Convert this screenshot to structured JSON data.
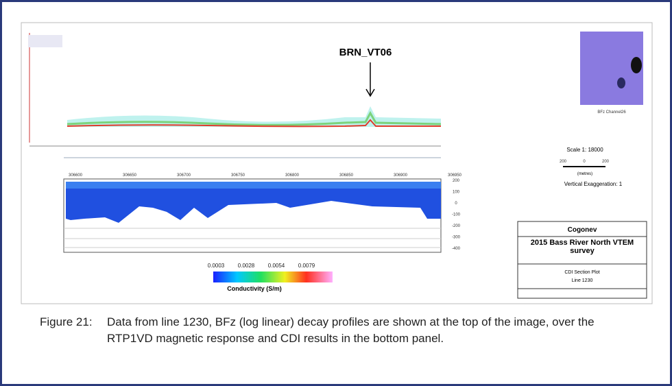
{
  "figure": {
    "callout": "BRN_VT06",
    "thumbnail_label": "BFz Channel26",
    "scale": {
      "title": "Scale 1: 18000",
      "bar_labels": [
        "200",
        "0",
        "200"
      ],
      "unit": "(metres)",
      "exaggeration": "Vertical Exaggeration: 1"
    },
    "easting_labels": [
      "306600",
      "306650",
      "306700",
      "306750",
      "306800",
      "306850",
      "306900",
      "306950"
    ],
    "depth_labels": [
      "200",
      "100",
      "0",
      "-100",
      "-200",
      "-300",
      "-400"
    ],
    "colorbar": {
      "ticks": [
        "0.0003",
        "0.0028",
        "0.0054",
        "0.0079"
      ],
      "label": "Conductivity (S/m)"
    },
    "title_block": {
      "company": "Cogonev",
      "survey": "2015 Bass River North VTEM survey",
      "plot": "CDI Section Plot",
      "line": "Line 1230"
    }
  },
  "caption": {
    "number": "Figure 21:",
    "text": "Data from line 1230, BFz (log linear) decay profiles are shown at the top of the image, over the RTP1VD magnetic response and CDI results in the bottom panel."
  }
}
